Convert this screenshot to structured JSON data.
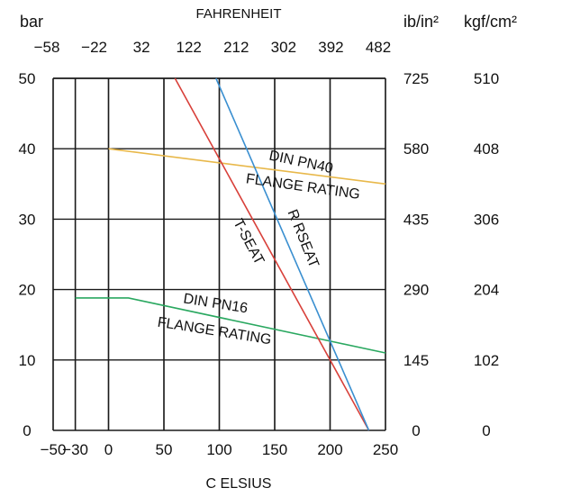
{
  "chart_data": {
    "type": "line",
    "grid": true,
    "xlabel": "C ELSIUS",
    "top_axis_title": "FAHRENHEIT",
    "ylabel_left": "bar",
    "ylabel_right_1": "ib/in²",
    "ylabel_right_2": "kgf/cm²",
    "xlim": [
      -50,
      250
    ],
    "ylim": [
      0,
      50
    ],
    "x_ticks": [
      -50,
      -30,
      0,
      50,
      100,
      150,
      200,
      250
    ],
    "x_tick_labels": [
      "−50",
      "−30",
      "0",
      "50",
      "100",
      "150",
      "200",
      "250"
    ],
    "top_ticks": [
      -58,
      -22,
      32,
      122,
      212,
      302,
      392,
      482
    ],
    "top_tick_labels": [
      "−58",
      "−22",
      "32",
      "122",
      "212",
      "302",
      "392",
      "482"
    ],
    "y_ticks": [
      0,
      10,
      20,
      30,
      40,
      50
    ],
    "y_tick_labels": [
      "0",
      "10",
      "20",
      "30",
      "40",
      "50"
    ],
    "right1_tick_labels": [
      "0",
      "145",
      "290",
      "435",
      "580",
      "725"
    ],
    "right2_tick_labels": [
      "0",
      "102",
      "204",
      "306",
      "408",
      "510"
    ],
    "series": [
      {
        "color": "#e8b84a",
        "x": [
          0,
          250
        ],
        "y": [
          40,
          35
        ]
      },
      {
        "color": "#2aa860",
        "x": [
          -30,
          18,
          250
        ],
        "y": [
          18.8,
          18.8,
          11
        ]
      },
      {
        "color": "#d8403a",
        "x": [
          60,
          235
        ],
        "y": [
          50,
          0
        ]
      },
      {
        "color": "#3a8fd0",
        "x": [
          97,
          235
        ],
        "y": [
          50,
          0
        ]
      }
    ],
    "annotations": [
      {
        "text": "DIN PN40",
        "x": 173,
        "y": 37.5,
        "rotate": 12
      },
      {
        "text": "FLANGE RATING",
        "x": 175,
        "y": 34.0,
        "rotate": 8
      },
      {
        "text": "R RSEAT",
        "x": 172,
        "y": 27.0,
        "rotate": 68
      },
      {
        "text": "T-SEAT",
        "x": 123,
        "y": 26.5,
        "rotate": 62
      },
      {
        "text": "DIN PN16",
        "x": 96,
        "y": 17.4,
        "rotate": 9
      },
      {
        "text": "FLANGE RATING",
        "x": 95,
        "y": 13.5,
        "rotate": 9
      }
    ]
  }
}
